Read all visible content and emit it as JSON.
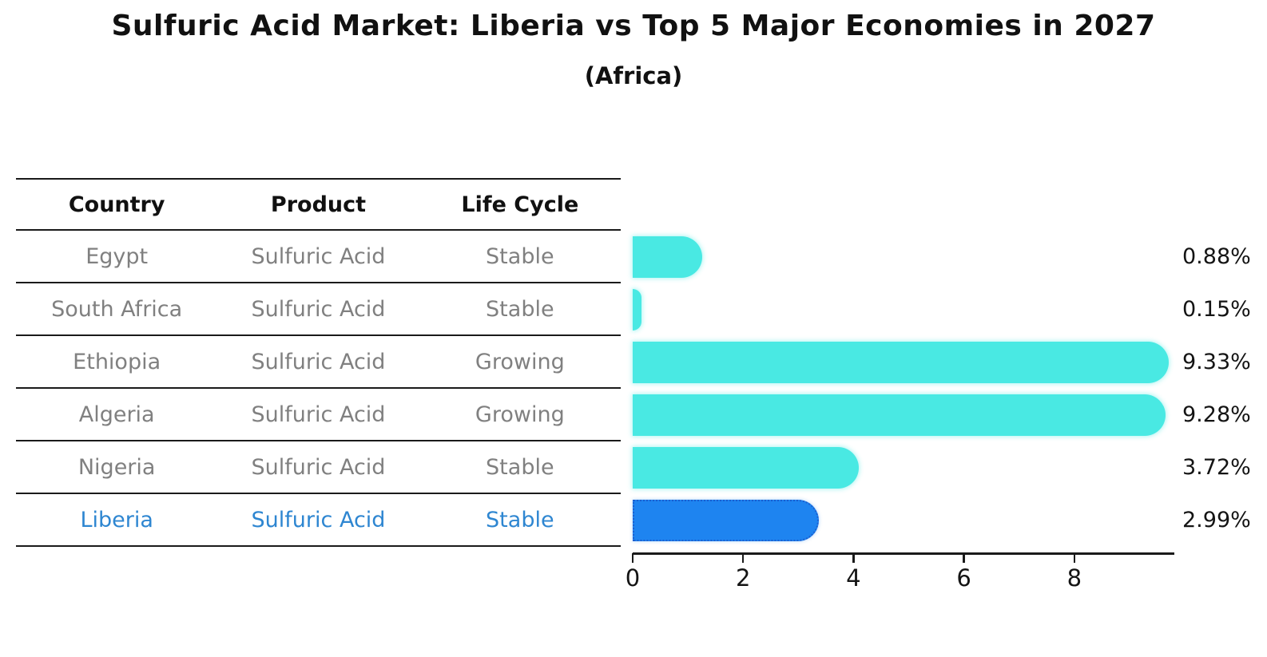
{
  "chart_data": {
    "type": "bar",
    "orientation": "horizontal",
    "title": "Sulfuric Acid Market: Liberia vs Top 5 Major Economies in 2027",
    "subtitle": "(Africa)",
    "xlabel": "",
    "ylabel": "",
    "xlim": [
      0,
      9.8
    ],
    "x_ticks": [
      "0",
      "2",
      "4",
      "6",
      "8"
    ],
    "grid": "off",
    "legend": "none",
    "table": {
      "headers": [
        "Country",
        "Product",
        "Life Cycle"
      ]
    },
    "rows": [
      {
        "country": "Egypt",
        "product": "Sulfuric Acid",
        "life_cycle": "Stable",
        "value": 0.88,
        "value_label": "0.88%",
        "highlight": false
      },
      {
        "country": "South Africa",
        "product": "Sulfuric Acid",
        "life_cycle": "Stable",
        "value": 0.15,
        "value_label": "0.15%",
        "highlight": false
      },
      {
        "country": "Ethiopia",
        "product": "Sulfuric Acid",
        "life_cycle": "Growing",
        "value": 9.33,
        "value_label": "9.33%",
        "highlight": false
      },
      {
        "country": "Algeria",
        "product": "Sulfuric Acid",
        "life_cycle": "Growing",
        "value": 9.28,
        "value_label": "9.28%",
        "highlight": false
      },
      {
        "country": "Nigeria",
        "product": "Sulfuric Acid",
        "life_cycle": "Stable",
        "value": 3.72,
        "value_label": "3.72%",
        "highlight": false
      },
      {
        "country": "Liberia",
        "product": "Sulfuric Acid",
        "life_cycle": "Stable",
        "value": 2.99,
        "value_label": "2.99%",
        "highlight": true
      }
    ],
    "colors": {
      "bar": "#49E9E3",
      "highlight_bar": "#1E84F0",
      "highlight_border": "#1B5FD0",
      "highlight_text": "#2E86D1",
      "row_text": "#808080",
      "header_text": "#111111",
      "axis": "#1A1A1A"
    }
  }
}
